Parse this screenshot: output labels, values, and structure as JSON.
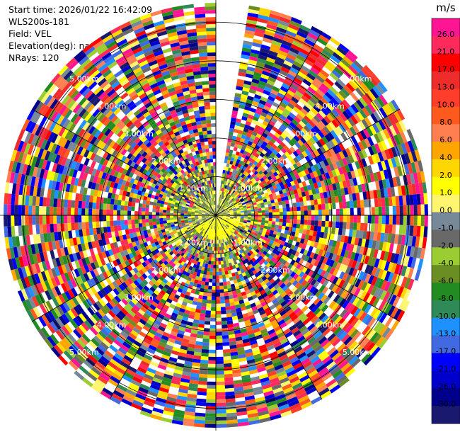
{
  "header": {
    "start_time": "Start time: 2026/01/22 16:42:09",
    "instrument": "WLS200s-181",
    "field": "Field: VEL",
    "elevation": "Elevation(deg): nan",
    "nrays": "NRays: 120"
  },
  "chart_data": {
    "type": "ppi",
    "field": "VEL",
    "nrays": 120,
    "range_rings_km": [
      1.0,
      2.0,
      3.0,
      4.0,
      5.0
    ],
    "range_ring_labels": [
      "1.00km",
      "2.00km",
      "3.00km",
      "4.00km",
      "5.00km"
    ],
    "radial_spokes_deg": [
      0,
      30,
      60,
      90,
      120,
      150,
      180,
      210,
      240,
      270,
      300,
      330
    ],
    "missing_sector_deg": [
      0,
      10
    ],
    "colorbar": {
      "unit": "m/s",
      "ticks": [
        "26.0",
        "21.0",
        "17.0",
        "13.0",
        "10.0",
        "8.0",
        "6.0",
        "4.0",
        "2.0",
        "1.0",
        "0.0",
        "-1.0",
        "-2.0",
        "-4.0",
        "-6.0",
        "-8.0",
        "-10.0",
        "-13.0",
        "-17.0",
        "-21.0",
        "-26.0",
        "-30.0"
      ],
      "colors": [
        "#ff1493",
        "#ff2a5c",
        "#ff0000",
        "#ee2c2c",
        "#ff3d2a",
        "#ff5a1e",
        "#ff7f50",
        "#ffa500",
        "#ffd700",
        "#ffff00",
        "#fff56e",
        "#778899",
        "#696969",
        "#9acd32",
        "#6b8e23",
        "#228b22",
        "#2e8b57",
        "#1e90ff",
        "#4169e1",
        "#0000ff",
        "#0000cd",
        "#00008b",
        "#191970"
      ]
    }
  }
}
